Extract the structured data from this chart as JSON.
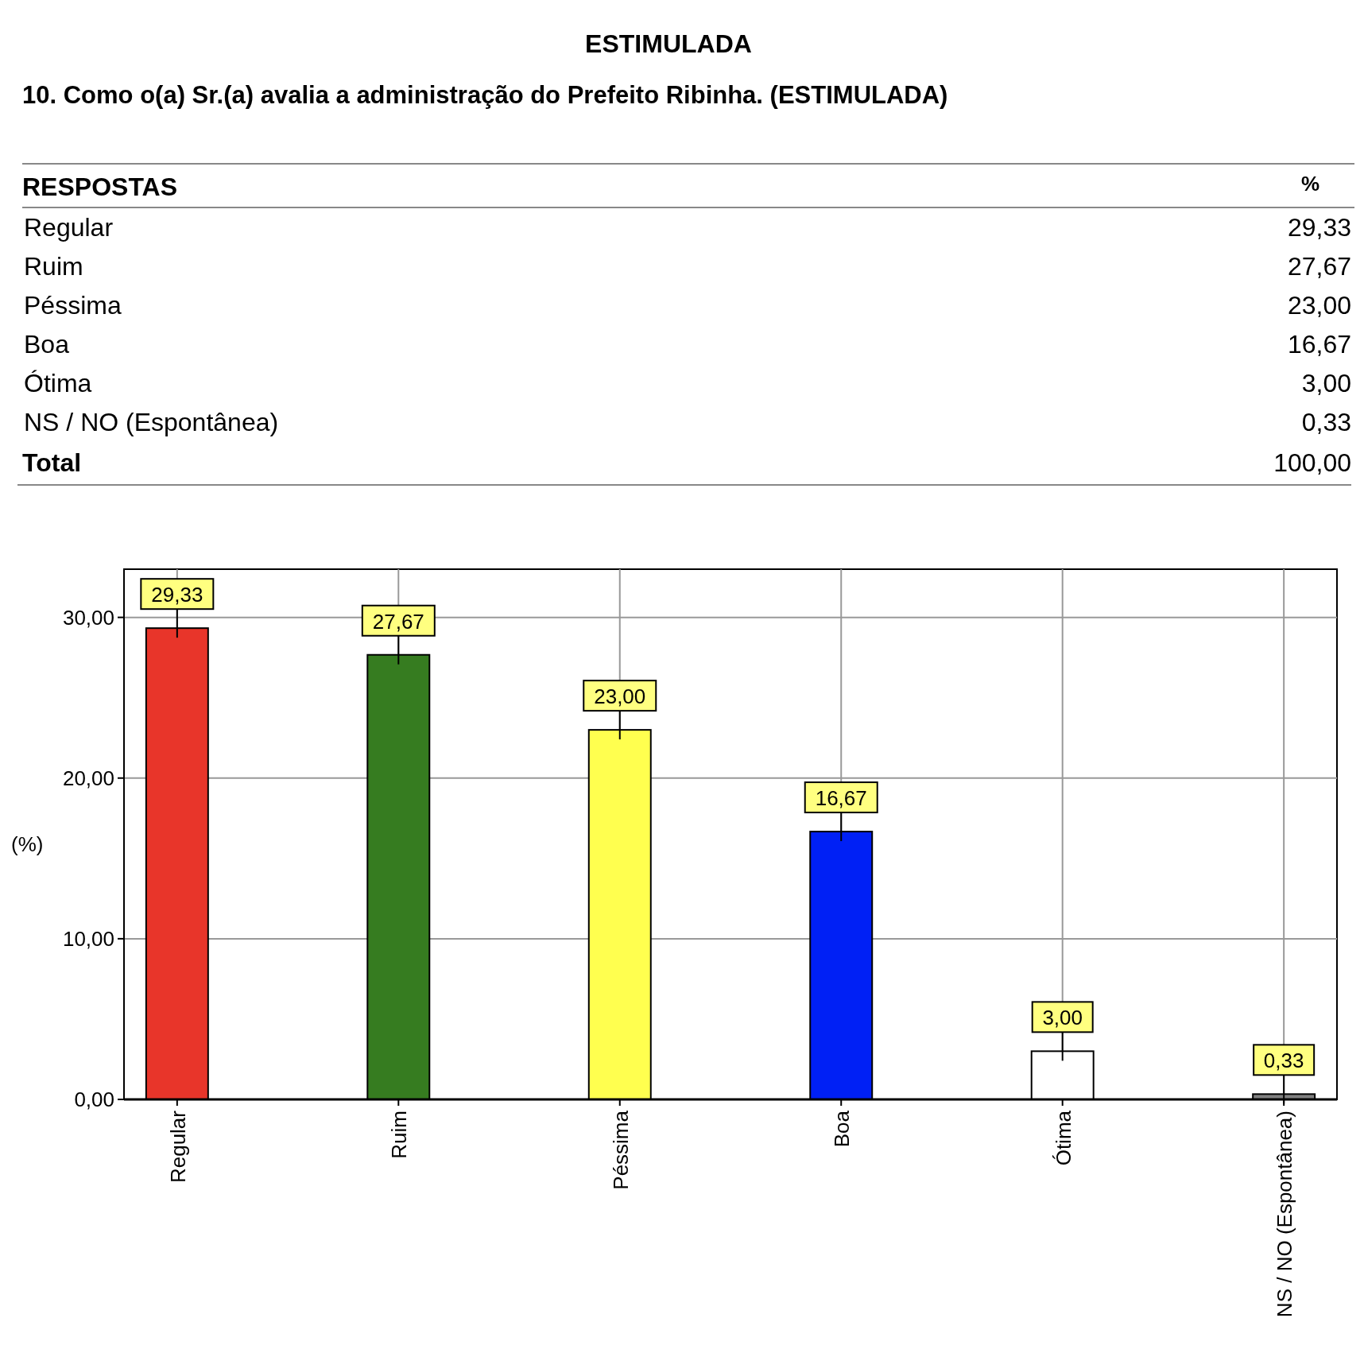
{
  "chart_data": {
    "type": "bar",
    "title": "ESTIMULADA",
    "subtitle": "10. Como o(a) Sr.(a) avalia a administração do Prefeito Ribinha. (ESTIMULADA)",
    "ylabel": "(%)",
    "annotations": [
      "RESPOSTAS",
      "%",
      "Total",
      "100,00"
    ],
    "categories": [
      "Regular",
      "Ruim",
      "Péssima",
      "Boa",
      "Ótima",
      "NS / NO (Espontânea)"
    ],
    "values": [
      29.33,
      27.67,
      23.0,
      16.67,
      3.0,
      0.33
    ],
    "value_labels": [
      "29,33",
      "27,67",
      "23,00",
      "16,67",
      "3,00",
      "0,33"
    ],
    "colors": [
      "#e8352a",
      "#367c20",
      "#ffff4f",
      "#0020f5",
      "#ffffff",
      "#808080"
    ],
    "ylim": [
      0,
      33
    ],
    "yticks": [
      {
        "value": 0,
        "label": "0,00"
      },
      {
        "value": 10,
        "label": "10,00"
      },
      {
        "value": 20,
        "label": "20,00"
      },
      {
        "value": 30,
        "label": "30,00"
      }
    ],
    "grid": true
  }
}
